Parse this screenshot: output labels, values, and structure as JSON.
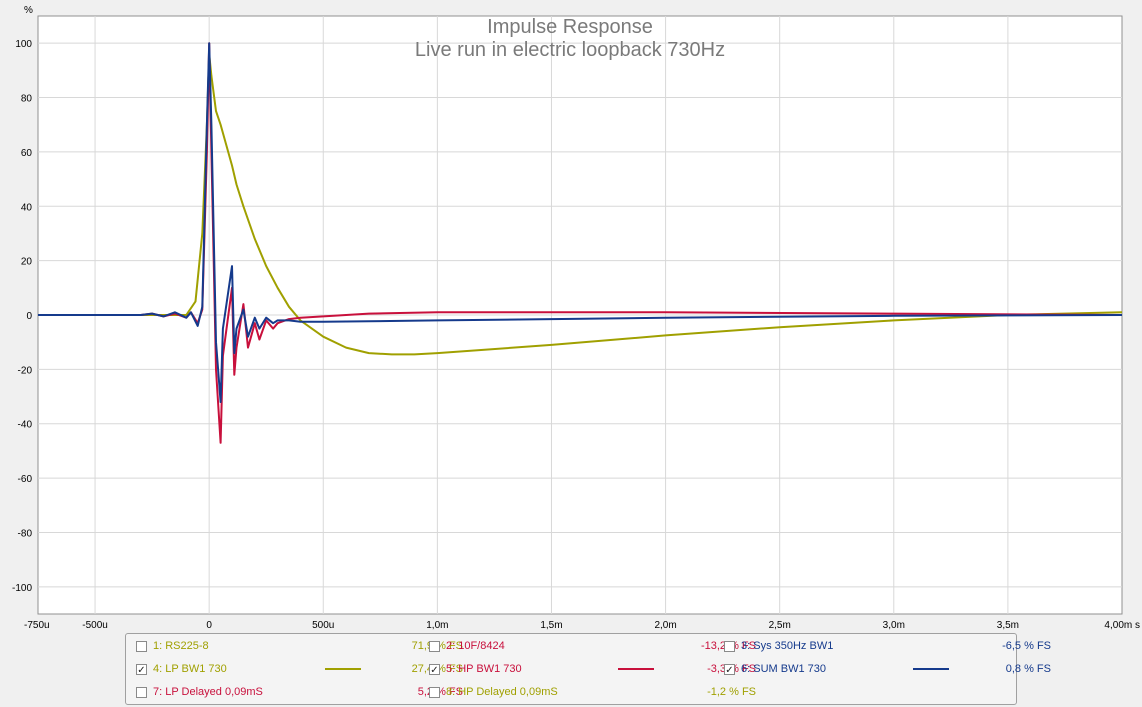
{
  "chart_data": {
    "type": "line",
    "title": "Impulse Response",
    "subtitle": "Live run in electric loopback 730Hz",
    "ylabel": "%",
    "xlim": [
      -0.00075,
      0.004
    ],
    "ylim": [
      -110,
      110
    ],
    "grid": true,
    "x_ticks": [
      {
        "v": -0.00075,
        "label": "-750u"
      },
      {
        "v": -0.0005,
        "label": "-500u"
      },
      {
        "v": 0,
        "label": "0"
      },
      {
        "v": 0.0005,
        "label": "500u"
      },
      {
        "v": 0.001,
        "label": "1,0m"
      },
      {
        "v": 0.0015,
        "label": "1,5m"
      },
      {
        "v": 0.002,
        "label": "2,0m"
      },
      {
        "v": 0.0025,
        "label": "2,5m"
      },
      {
        "v": 0.003,
        "label": "3,0m"
      },
      {
        "v": 0.0035,
        "label": "3,5m"
      },
      {
        "v": 0.004,
        "label": "4,00m s"
      }
    ],
    "y_ticks": [
      {
        "v": 100,
        "label": "100"
      },
      {
        "v": 80,
        "label": "80"
      },
      {
        "v": 60,
        "label": "60"
      },
      {
        "v": 40,
        "label": "40"
      },
      {
        "v": 20,
        "label": "20"
      },
      {
        "v": 0,
        "label": "0"
      },
      {
        "v": -20,
        "label": "-20"
      },
      {
        "v": -40,
        "label": "-40"
      },
      {
        "v": -60,
        "label": "-60"
      },
      {
        "v": -80,
        "label": "-80"
      },
      {
        "v": -100,
        "label": "-100"
      }
    ],
    "series": [
      {
        "name": "4: LP BW1 730",
        "color": "#a0a000",
        "x": [
          -0.00075,
          -0.0003,
          -0.0002,
          -0.0001,
          -6e-05,
          -3e-05,
          -1e-05,
          0.0,
          1e-05,
          3e-05,
          5e-05,
          0.0001,
          0.00012,
          0.00015,
          0.0002,
          0.00025,
          0.0003,
          0.00035,
          0.0004,
          0.0005,
          0.0006,
          0.0007,
          0.0008,
          0.0009,
          0.001,
          0.0015,
          0.002,
          0.0025,
          0.003,
          0.0035,
          0.004
        ],
        "y": [
          0,
          0,
          0,
          0,
          5,
          30,
          70,
          96,
          88,
          75,
          70,
          55,
          48,
          40,
          28,
          18,
          10,
          3,
          -2,
          -8,
          -12,
          -14,
          -14.5,
          -14.5,
          -14,
          -11,
          -7.5,
          -4.5,
          -2,
          0,
          1
        ]
      },
      {
        "name": "5: HP BW1 730",
        "color": "#c8103c",
        "x": [
          -0.00075,
          -0.0003,
          -0.00025,
          -0.0002,
          -0.00015,
          -0.0001,
          -8e-05,
          -5e-05,
          -3e-05,
          -1e-05,
          0.0,
          1e-05,
          3e-05,
          5e-05,
          6e-05,
          0.0001,
          0.00011,
          0.00012,
          0.00015,
          0.00017,
          0.0002,
          0.00022,
          0.00025,
          0.00028,
          0.0003,
          0.00035,
          0.0004,
          0.0005,
          0.0007,
          0.001,
          0.0015,
          0.002,
          0.003,
          0.004
        ],
        "y": [
          0,
          0,
          0.5,
          -0.5,
          0.5,
          -1,
          1,
          -3,
          2,
          60,
          100,
          60,
          -20,
          -47,
          -15,
          10,
          -22,
          -12,
          4,
          -12,
          -3,
          -9,
          -2,
          -5,
          -3,
          -1.5,
          -1,
          -0.5,
          0.5,
          1,
          1,
          1,
          0.5,
          0
        ]
      },
      {
        "name": "6: SUM BW1 730",
        "color": "#153a8c",
        "x": [
          -0.00075,
          -0.0003,
          -0.00025,
          -0.0002,
          -0.00015,
          -0.0001,
          -8e-05,
          -5e-05,
          -3e-05,
          -1e-05,
          0.0,
          1e-05,
          3e-05,
          5e-05,
          6e-05,
          0.0001,
          0.00011,
          0.00012,
          0.00015,
          0.00017,
          0.0002,
          0.00022,
          0.00025,
          0.00028,
          0.0003,
          0.00035,
          0.0004,
          0.0005,
          0.0007,
          0.001,
          0.0015,
          0.002,
          0.003,
          0.004
        ],
        "y": [
          0,
          0,
          0.5,
          -0.5,
          1,
          -1,
          1,
          -4,
          3,
          70,
          100,
          70,
          -10,
          -32,
          -5,
          18,
          -14,
          -5,
          2,
          -8,
          -1,
          -5,
          -1,
          -3,
          -2,
          -2,
          -2.5,
          -2.5,
          -2.3,
          -2,
          -1.5,
          -1,
          -0.3,
          0
        ]
      }
    ]
  },
  "legend": [
    {
      "name": "1: RS225-8",
      "value": "71,9 % FS",
      "checked": false,
      "color": "#a0a000",
      "show_swatch": false
    },
    {
      "name": "2: 10F/8424",
      "value": "-13,2 % FS",
      "checked": false,
      "color": "#c8103c",
      "show_swatch": false
    },
    {
      "name": "3: Sys 350Hz BW1",
      "value": "-6,5 % FS",
      "checked": false,
      "color": "#153a8c",
      "show_swatch": false
    },
    {
      "name": "4: LP BW1 730",
      "value": "27,4 % FS",
      "checked": true,
      "color": "#a0a000",
      "show_swatch": true
    },
    {
      "name": "5: HP BW1 730",
      "value": "-3,3 % FS",
      "checked": true,
      "color": "#c8103c",
      "show_swatch": true
    },
    {
      "name": "6: SUM BW1 730",
      "value": "0,8 % FS",
      "checked": true,
      "color": "#153a8c",
      "show_swatch": true
    },
    {
      "name": "7: LP Delayed 0,09mS",
      "value": "5,2 % FS",
      "checked": false,
      "color": "#c8103c",
      "show_swatch": false
    },
    {
      "name": "8: HP Delayed 0,09mS",
      "value": "-1,2 % FS",
      "checked": false,
      "color": "#a0a000",
      "show_swatch": false
    }
  ],
  "colors": {
    "plot_bg": "#ffffff",
    "grid": "#d8d8d8",
    "frame": "#909090"
  }
}
